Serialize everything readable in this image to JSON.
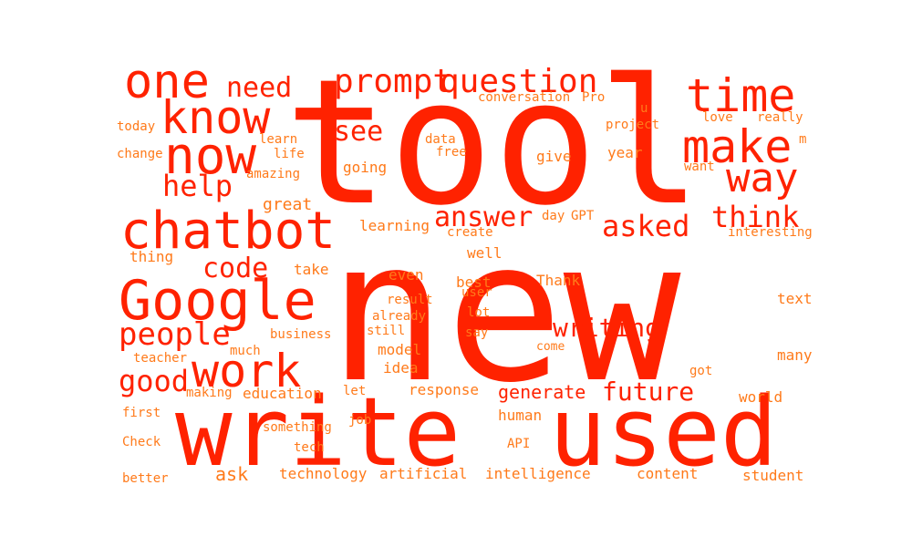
{
  "palette": {
    "background": "#ffffff",
    "big": "#ff2200",
    "small": "#ff7a1a"
  },
  "words": [
    "tool",
    "new",
    "write",
    "used",
    "Google",
    "chatbot",
    "one",
    "know",
    "now",
    "time",
    "make",
    "way",
    "prompt",
    "question",
    "need",
    "help",
    "work",
    "people",
    "good",
    "code",
    "answer",
    "asked",
    "think",
    "writing",
    "future",
    "generate",
    "see",
    "ask",
    "conversation",
    "Pro",
    "u",
    "project",
    "love",
    "really",
    "today",
    "learn",
    "data",
    "change",
    "life",
    "free",
    "give",
    "year",
    "m",
    "amazing",
    "going",
    "want",
    "great",
    "learning",
    "day",
    "GPT",
    "create",
    "interesting",
    "thing",
    "take",
    "well",
    "even",
    "best",
    "user",
    "Thank",
    "result",
    "lot",
    "already",
    "text",
    "still",
    "say",
    "business",
    "much",
    "model",
    "come",
    "teacher",
    "idea",
    "many",
    "got",
    "making",
    "education",
    "let",
    "response",
    "world",
    "first",
    "job",
    "human",
    "something",
    "Check",
    "tech",
    "API",
    "better",
    "technology",
    "artificial",
    "intelligence",
    "content",
    "student"
  ]
}
